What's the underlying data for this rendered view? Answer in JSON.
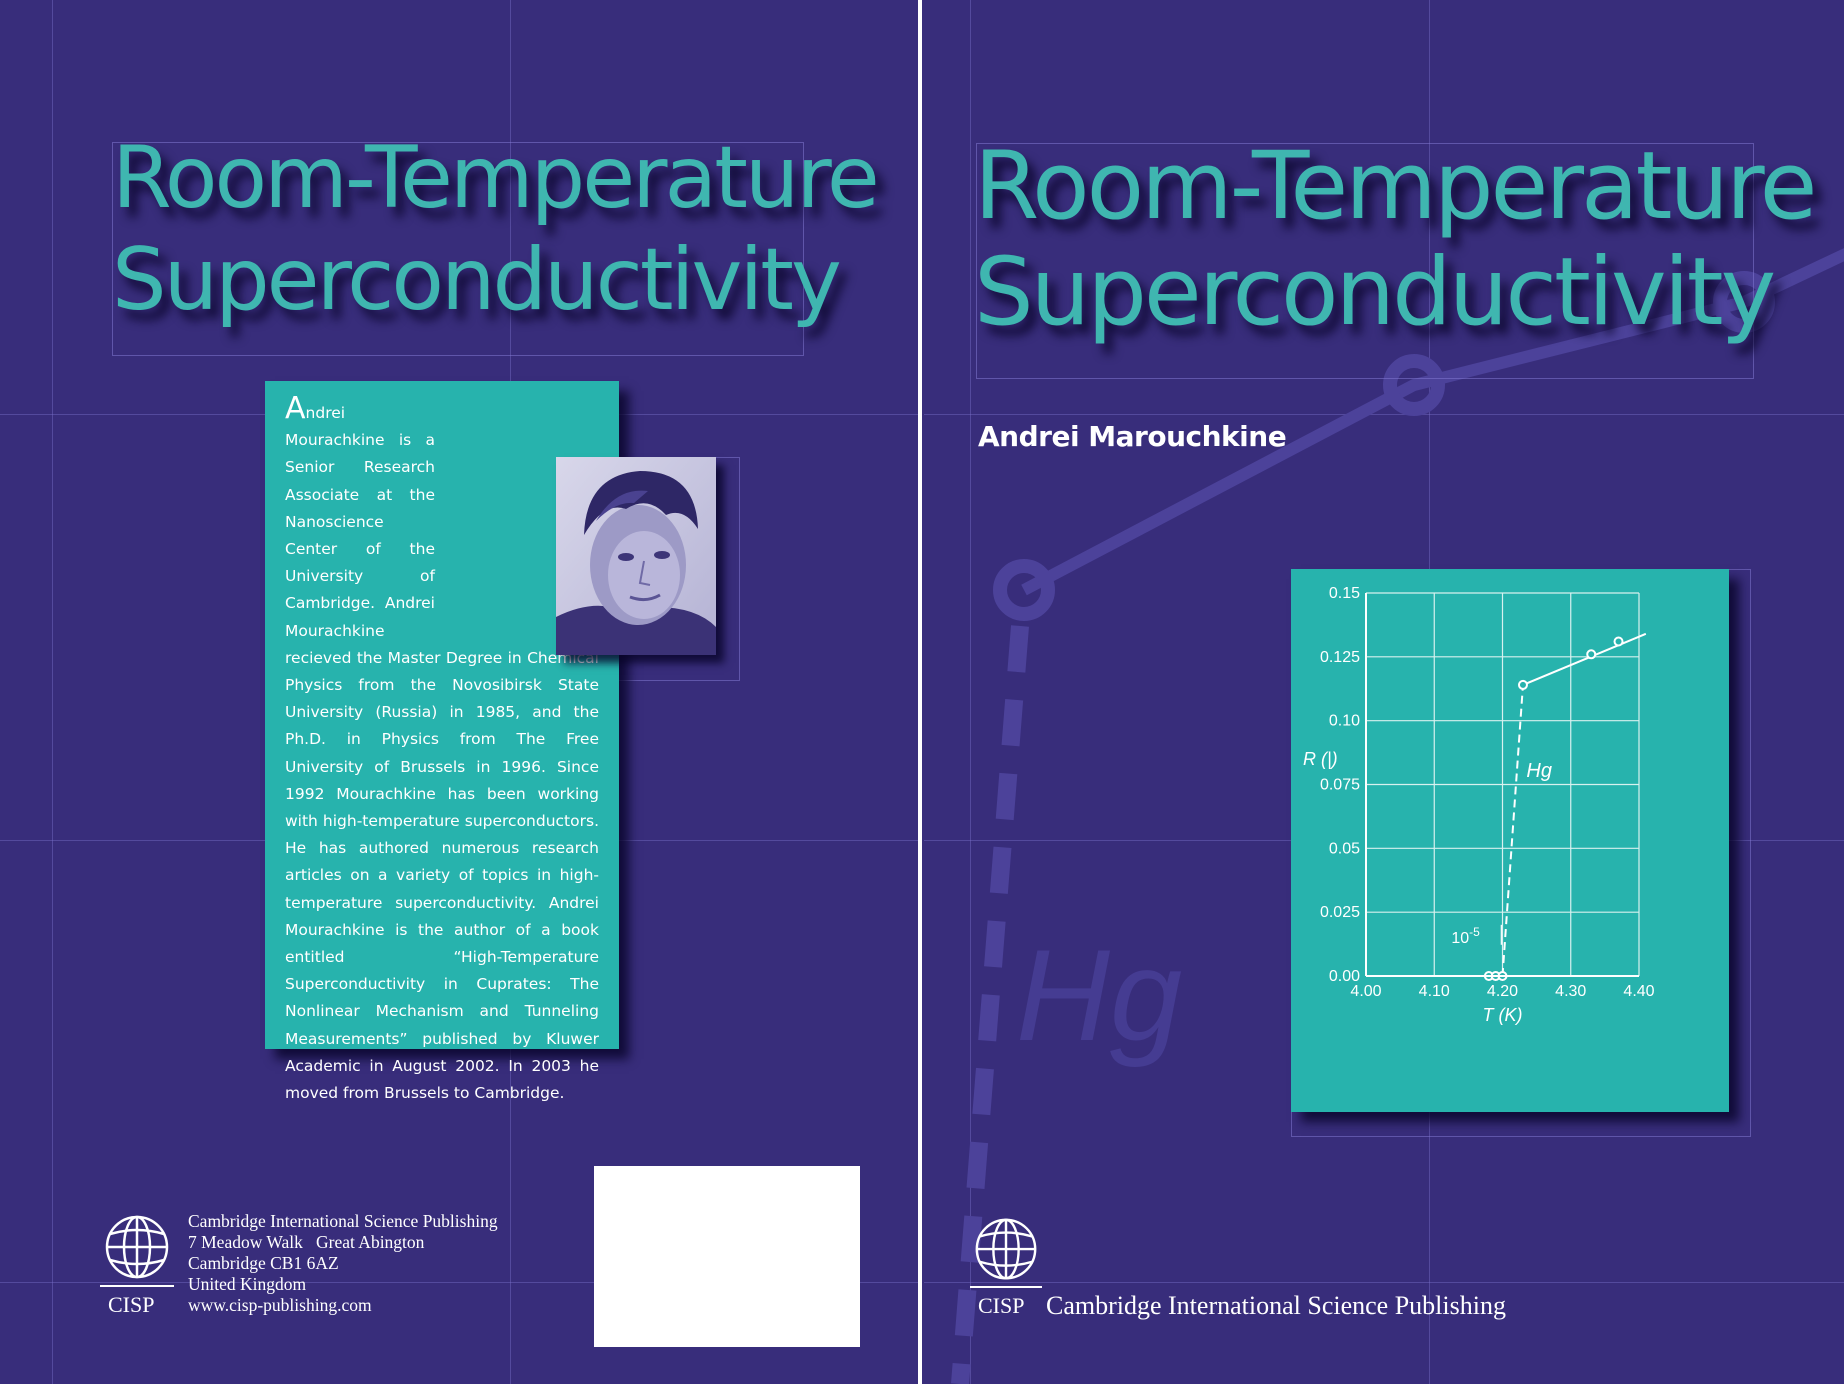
{
  "back_cover": {
    "title_line1": "Room-Temperature",
    "title_line2": "Superconductivity",
    "bio": "Andrei Mourachkine is a Senior Research Associate at the Nanoscience Center of the University of Cambridge. Andrei Mourachkine recieved the Master Degree in Chemical Physics from the Novosibirsk State University (Russia) in 1985, and the Ph.D. in Physics from The Free University of Brussels in 1996. Since 1992 Mourachkine has been working with high-temperature superconductors. He has authored numerous research articles on a variety of topics in high-temperature superconductivity. Andrei Mourachkine is the author of a book entitled “High-Temperature Superconductivity in Cuprates: The Nonlinear Mechanism and Tunneling Measurements” published by Kluwer Academic in August 2002. In 2003 he moved from Brussels to Cambridge.",
    "publisher_abbr": "CISP",
    "address_lines": [
      "Cambridge International Science Publishing",
      "7 Meadow Walk   Great Abington",
      "Cambridge CB1 6AZ",
      "United Kingdom",
      "www.cisp-publishing.com"
    ]
  },
  "front_cover": {
    "title_line1": "Room-Temperature",
    "title_line2": "Superconductivity",
    "author": "Andrei Marouchkine",
    "publisher_abbr": "CISP",
    "publisher_name": "Cambridge International Science Publishing",
    "background_label": "Hg"
  },
  "colors": {
    "background": "#382d7b",
    "accent_teal": "#27b3ad",
    "title_teal": "#3fb6b0",
    "text": "#ffffff"
  },
  "icons": [
    "globe-icon",
    "author-photo"
  ],
  "chart_data": {
    "type": "line",
    "xlabel": "T (K)",
    "ylabel": "R (|)",
    "x_ticks": [
      "4.00",
      "4.10",
      "4.20",
      "4.30",
      "4.40"
    ],
    "y_ticks": [
      "0.00",
      "0.025",
      "0.05",
      "0.075",
      "0.10",
      "0.125",
      "0.15"
    ],
    "xlim": [
      4.0,
      4.4
    ],
    "ylim": [
      0,
      0.15
    ],
    "grid": true,
    "series": [
      {
        "name": "Hg",
        "points": [
          {
            "x": 4.18,
            "y": 0.0
          },
          {
            "x": 4.19,
            "y": 0.0
          },
          {
            "x": 4.2,
            "y": 0.0
          },
          {
            "x": 4.23,
            "y": 0.114
          },
          {
            "x": 4.33,
            "y": 0.126
          },
          {
            "x": 4.37,
            "y": 0.131
          }
        ],
        "dashed_segment": [
          {
            "x": 4.2,
            "y": 0.0
          },
          {
            "x": 4.23,
            "y": 0.114
          }
        ],
        "solid_extension": [
          {
            "x": 4.23,
            "y": 0.114
          },
          {
            "x": 4.41,
            "y": 0.134
          }
        ]
      }
    ],
    "annotations": [
      {
        "text": "Hg",
        "x": 4.235,
        "y": 0.078
      },
      {
        "text_base": "10",
        "text_sup": "-5",
        "x": 4.125,
        "y": 0.013
      }
    ]
  }
}
